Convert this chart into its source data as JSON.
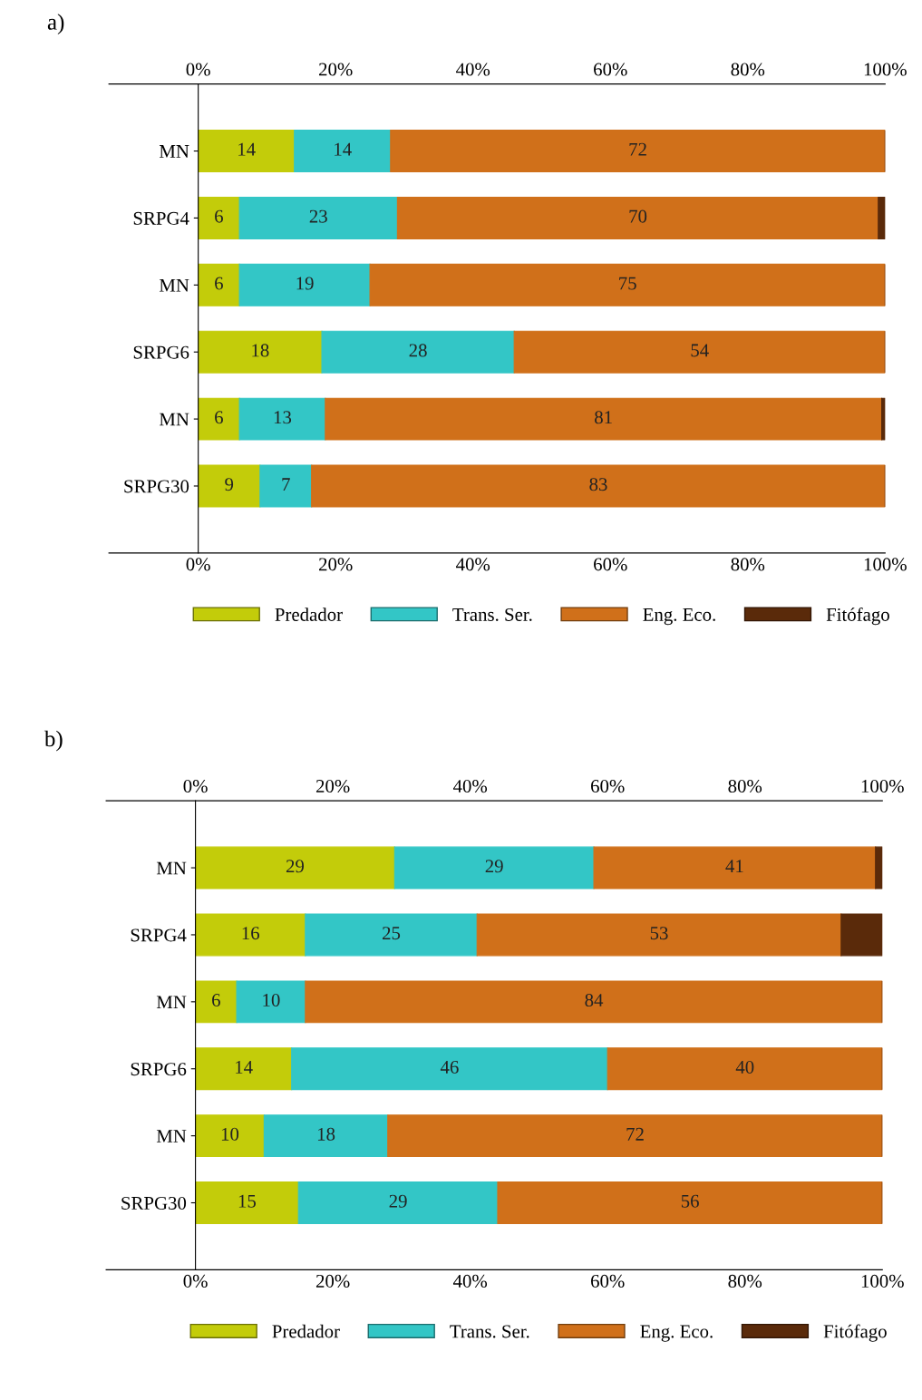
{
  "chart_data": [
    {
      "type": "bar",
      "orientation": "horizontal",
      "stacked": true,
      "title": "a)",
      "categories": [
        "MN",
        "SRPG4",
        "MN",
        "SRPG6",
        "MN",
        "SRPG30"
      ],
      "series": [
        {
          "name": "Predador",
          "color": "#c3cc0a",
          "values": [
            14,
            6,
            6,
            18,
            6,
            9
          ],
          "value_labels": [
            "14",
            "6",
            "6",
            "18",
            "6",
            "9"
          ]
        },
        {
          "name": "Trans. Ser.",
          "color": "#33c6c6",
          "values": [
            14,
            23,
            19,
            28,
            12.5,
            7.5
          ],
          "value_labels": [
            "14",
            "23",
            "19",
            "28",
            "13",
            "7"
          ]
        },
        {
          "name": "Eng. Eco.",
          "color": "#d0701a",
          "values": [
            72,
            70,
            75,
            54,
            81,
            83.5
          ],
          "value_labels": [
            "72",
            "70",
            "75",
            "54",
            "81",
            "83"
          ]
        },
        {
          "name": "Fitófago",
          "color": "#5a2a0a",
          "values": [
            null,
            1,
            null,
            null,
            0.5,
            null
          ],
          "value_labels": [
            null,
            null,
            null,
            null,
            null,
            null
          ]
        }
      ],
      "xlim": [
        0,
        100
      ],
      "xticks": [
        {
          "value": 0,
          "label": "0%"
        },
        {
          "value": 20,
          "label": "20%"
        },
        {
          "value": 40,
          "label": "40%"
        },
        {
          "value": 60,
          "label": "60%"
        },
        {
          "value": 80,
          "label": "80%"
        },
        {
          "value": 100,
          "label": "100%"
        }
      ],
      "x2lim": [
        0,
        100
      ],
      "x2ticks": [
        {
          "value": 0,
          "label": "0%"
        },
        {
          "value": 20,
          "label": "20%"
        },
        {
          "value": 40,
          "label": "40%"
        },
        {
          "value": 60,
          "label": "60%"
        },
        {
          "value": 80,
          "label": "80%"
        },
        {
          "value": 100,
          "label": "100%"
        }
      ],
      "legend": "bottom",
      "grid": false
    },
    {
      "type": "bar",
      "orientation": "horizontal",
      "stacked": true,
      "title": "b)",
      "categories": [
        "MN",
        "SRPG4",
        "MN",
        "SRPG6",
        "MN",
        "SRPG30"
      ],
      "series": [
        {
          "name": "Predador",
          "color": "#c3cc0a",
          "values": [
            29,
            16,
            6,
            14,
            10,
            15
          ],
          "value_labels": [
            "29",
            "16",
            "6",
            "14",
            "10",
            "15"
          ]
        },
        {
          "name": "Trans. Ser.",
          "color": "#33c6c6",
          "values": [
            29,
            25,
            10,
            46,
            18,
            29
          ],
          "value_labels": [
            "29",
            "25",
            "10",
            "46",
            "18",
            "29"
          ]
        },
        {
          "name": "Eng. Eco.",
          "color": "#d0701a",
          "values": [
            41,
            53,
            84,
            40,
            72,
            56
          ],
          "value_labels": [
            "41",
            "53",
            "84",
            "40",
            "72",
            "56"
          ]
        },
        {
          "name": "Fitófago",
          "color": "#5a2a0a",
          "values": [
            1,
            6,
            null,
            null,
            null,
            null
          ],
          "value_labels": [
            null,
            null,
            null,
            null,
            null,
            null
          ]
        }
      ],
      "xlim": [
        0,
        100
      ],
      "xticks": [
        {
          "value": 0,
          "label": "0%"
        },
        {
          "value": 20,
          "label": "20%"
        },
        {
          "value": 40,
          "label": "40%"
        },
        {
          "value": 60,
          "label": "60%"
        },
        {
          "value": 80,
          "label": "80%"
        },
        {
          "value": 100,
          "label": "100%"
        }
      ],
      "x2lim": [
        0,
        100
      ],
      "x2ticks": [
        {
          "value": 0,
          "label": "0%"
        },
        {
          "value": 20,
          "label": "20%"
        },
        {
          "value": 40,
          "label": "40%"
        },
        {
          "value": 60,
          "label": "60%"
        },
        {
          "value": 80,
          "label": "80%"
        },
        {
          "value": 100,
          "label": "100%"
        }
      ],
      "legend": "bottom",
      "grid": false
    }
  ]
}
